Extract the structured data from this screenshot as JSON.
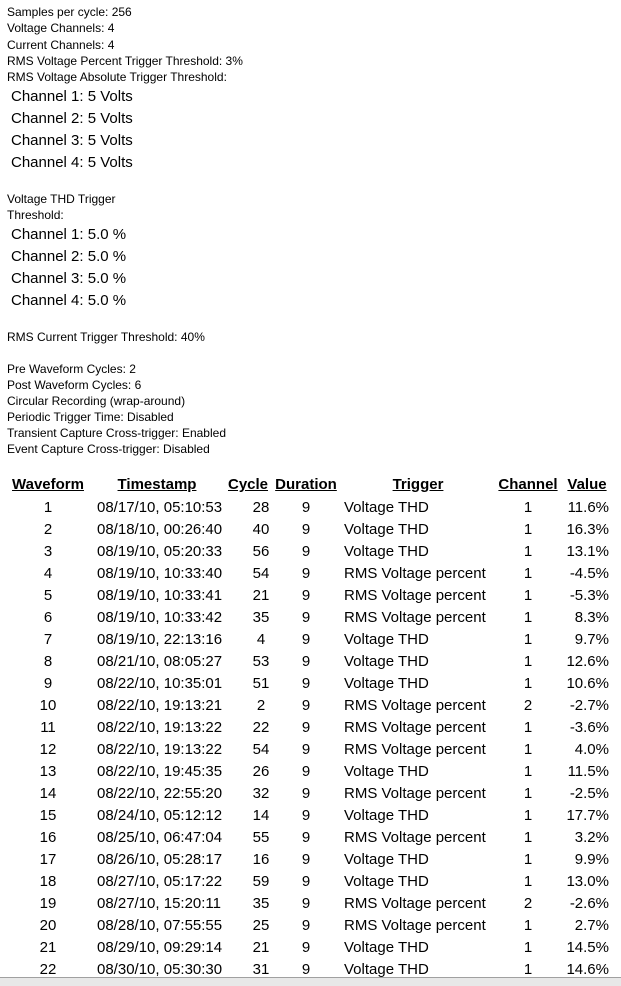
{
  "settings": {
    "lines": [
      "Samples per cycle: 256",
      "Voltage Channels: 4",
      "Current Channels: 4",
      "RMS Voltage Percent Trigger Threshold: 3%",
      "RMS Voltage Absolute Trigger Threshold:"
    ],
    "voltage_channels": [
      "Channel 1: 5 Volts",
      "Channel 2: 5 Volts",
      "Channel 3: 5 Volts",
      "Channel 4: 5 Volts"
    ],
    "thd_title": [
      "Voltage THD Trigger",
      "Threshold:"
    ],
    "thd_channels": [
      "Channel 1: 5.0 %",
      "Channel 2: 5.0 %",
      "Channel 3: 5.0 %",
      "Channel 4: 5.0 %"
    ],
    "current_threshold": "RMS Current Trigger Threshold: 40%",
    "capture": [
      "Pre Waveform Cycles: 2",
      "Post Waveform Cycles: 6",
      "Circular Recording (wrap-around)",
      "Periodic Trigger Time: Disabled",
      "Transient Capture Cross-trigger: Enabled",
      "Event Capture Cross-trigger: Disabled"
    ]
  },
  "table": {
    "header": [
      "Waveform",
      "Timestamp",
      "Cycle",
      "Duration",
      "Trigger",
      "Channel",
      "Value"
    ],
    "rows": [
      [
        "1",
        "08/17/10, 05:10:53",
        "28",
        "9",
        "Voltage THD",
        "1",
        "11.6%"
      ],
      [
        "2",
        "08/18/10, 00:26:40",
        "40",
        "9",
        "Voltage THD",
        "1",
        "16.3%"
      ],
      [
        "3",
        "08/19/10, 05:20:33",
        "56",
        "9",
        "Voltage THD",
        "1",
        "13.1%"
      ],
      [
        "4",
        "08/19/10, 10:33:40",
        "54",
        "9",
        "RMS Voltage percent",
        "1",
        "-4.5%"
      ],
      [
        "5",
        "08/19/10, 10:33:41",
        "21",
        "9",
        "RMS Voltage percent",
        "1",
        "-5.3%"
      ],
      [
        "6",
        "08/19/10, 10:33:42",
        "35",
        "9",
        "RMS Voltage percent",
        "1",
        "8.3%"
      ],
      [
        "7",
        "08/19/10, 22:13:16",
        "4",
        "9",
        "Voltage THD",
        "1",
        "9.7%"
      ],
      [
        "8",
        "08/21/10, 08:05:27",
        "53",
        "9",
        "Voltage THD",
        "1",
        "12.6%"
      ],
      [
        "9",
        "08/22/10, 10:35:01",
        "51",
        "9",
        "Voltage THD",
        "1",
        "10.6%"
      ],
      [
        "10",
        "08/22/10, 19:13:21",
        "2",
        "9",
        "RMS Voltage percent",
        "2",
        "-2.7%"
      ],
      [
        "11",
        "08/22/10, 19:13:22",
        "22",
        "9",
        "RMS Voltage percent",
        "1",
        "-3.6%"
      ],
      [
        "12",
        "08/22/10, 19:13:22",
        "54",
        "9",
        "RMS Voltage percent",
        "1",
        "4.0%"
      ],
      [
        "13",
        "08/22/10, 19:45:35",
        "26",
        "9",
        "Voltage THD",
        "1",
        "11.5%"
      ],
      [
        "14",
        "08/22/10, 22:55:20",
        "32",
        "9",
        "RMS Voltage percent",
        "1",
        "-2.5%"
      ],
      [
        "15",
        "08/24/10, 05:12:12",
        "14",
        "9",
        "Voltage THD",
        "1",
        "17.7%"
      ],
      [
        "16",
        "08/25/10, 06:47:04",
        "55",
        "9",
        "RMS Voltage percent",
        "1",
        "3.2%"
      ],
      [
        "17",
        "08/26/10, 05:28:17",
        "16",
        "9",
        "Voltage THD",
        "1",
        "9.9%"
      ],
      [
        "18",
        "08/27/10, 05:17:22",
        "59",
        "9",
        "Voltage THD",
        "1",
        "13.0%"
      ],
      [
        "19",
        "08/27/10, 15:20:11",
        "35",
        "9",
        "RMS Voltage percent",
        "2",
        "-2.6%"
      ],
      [
        "20",
        "08/28/10, 07:55:55",
        "25",
        "9",
        "RMS Voltage percent",
        "1",
        "2.7%"
      ],
      [
        "21",
        "08/29/10, 09:29:14",
        "21",
        "9",
        "Voltage THD",
        "1",
        "14.5%"
      ],
      [
        "22",
        "08/30/10, 05:30:30",
        "31",
        "9",
        "Voltage THD",
        "1",
        "14.6%"
      ]
    ]
  }
}
